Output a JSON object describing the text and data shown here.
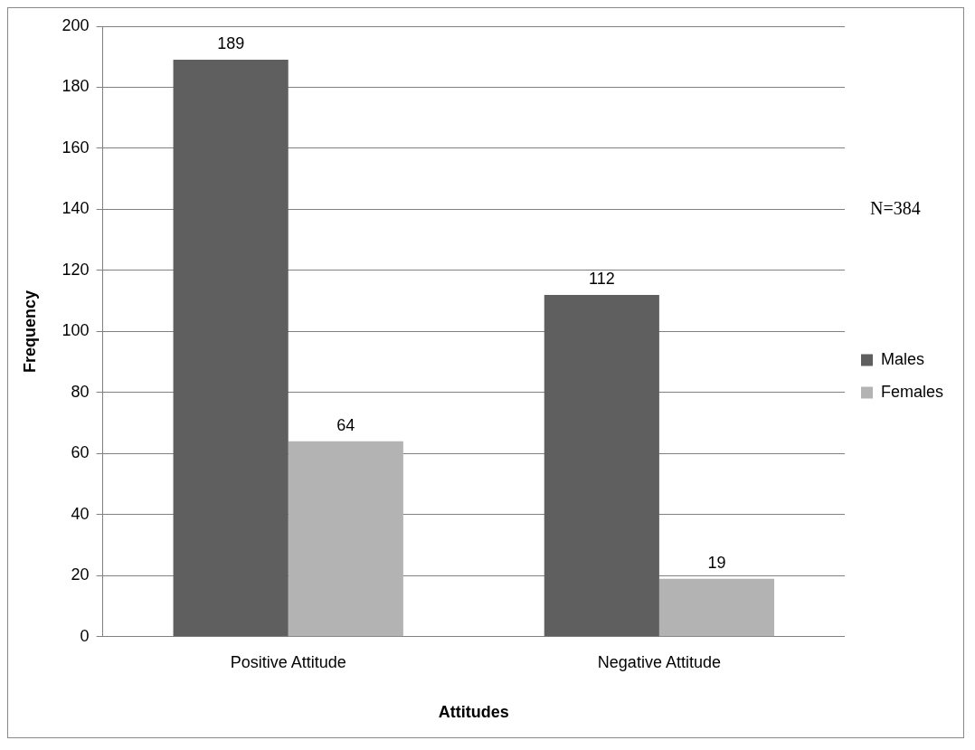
{
  "chart_data": {
    "type": "bar",
    "xlabel": "Attitudes",
    "ylabel": "Frequency",
    "categories": [
      "Positive Attitude",
      "Negative Attitude"
    ],
    "series": [
      {
        "name": "Males",
        "color": "#5f5f5f",
        "values": [
          189,
          112
        ]
      },
      {
        "name": "Females",
        "color": "#b3b3b3",
        "values": [
          64,
          19
        ]
      }
    ],
    "ylim": [
      0,
      200
    ],
    "yticks": [
      0,
      20,
      40,
      60,
      80,
      100,
      120,
      140,
      160,
      180,
      200
    ],
    "grid": "y",
    "legend": "right",
    "data_labels": true,
    "annotations": [
      "N=384"
    ]
  }
}
